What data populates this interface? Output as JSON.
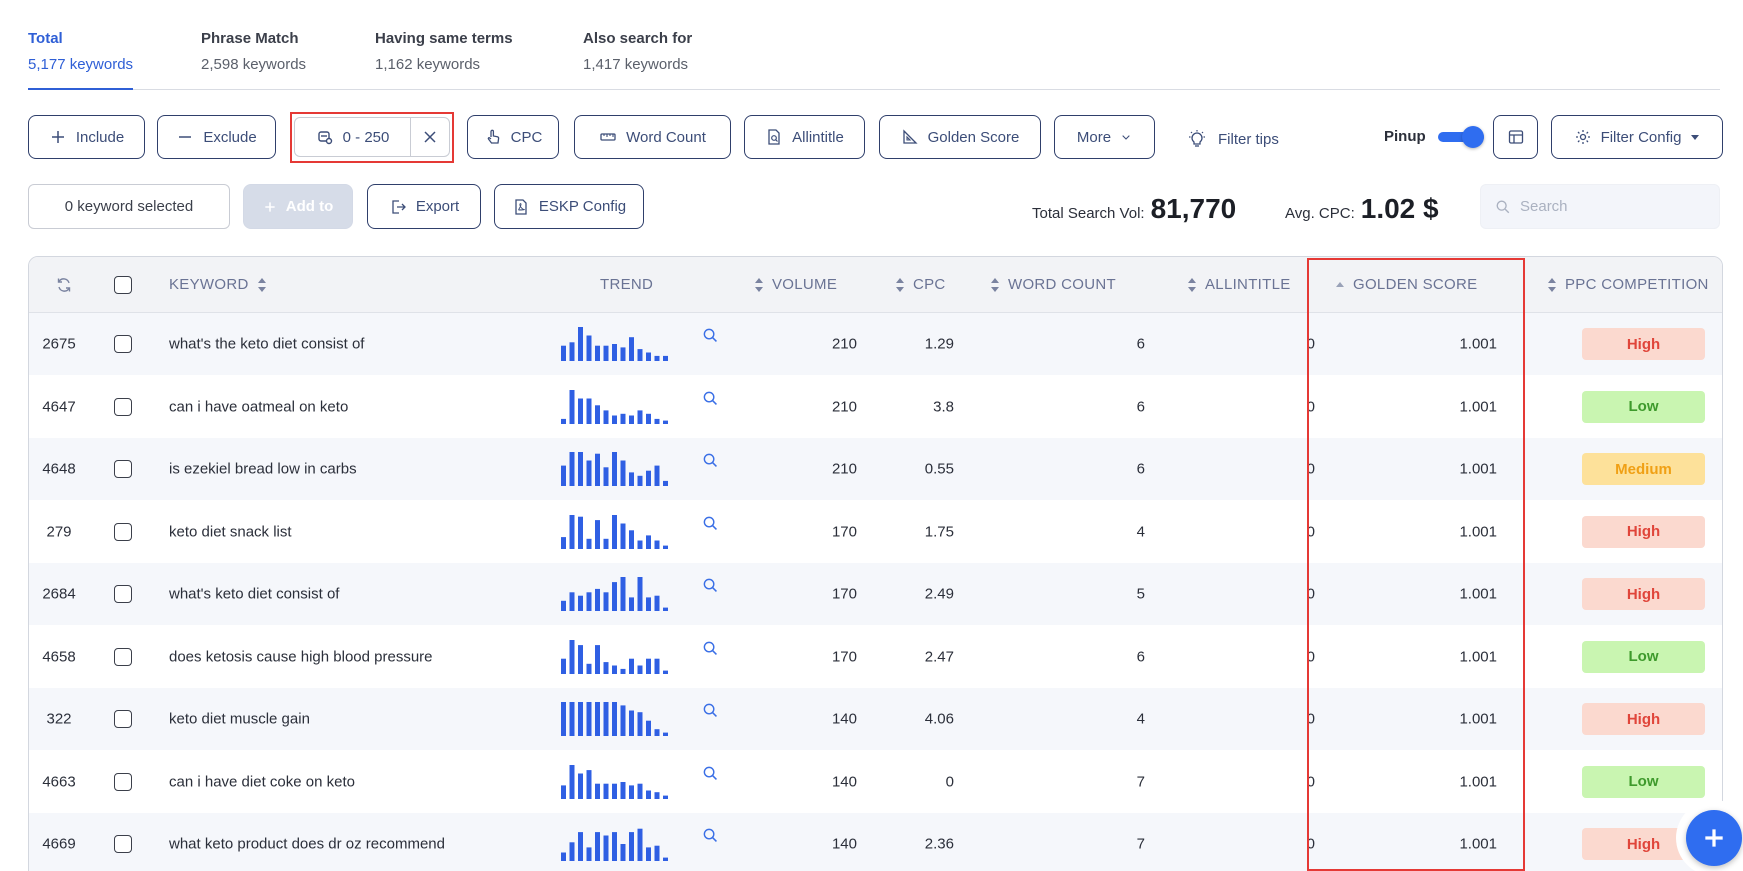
{
  "tabs": [
    {
      "title": "Total",
      "count": "5,177 keywords",
      "active": true
    },
    {
      "title": "Phrase Match",
      "count": "2,598 keywords",
      "active": false
    },
    {
      "title": "Having same terms",
      "count": "1,162 keywords",
      "active": false
    },
    {
      "title": "Also search for",
      "count": "1,417 keywords",
      "active": false
    }
  ],
  "filters": {
    "include": "Include",
    "exclude": "Exclude",
    "range": "0 - 250",
    "cpc": "CPC",
    "word_count": "Word Count",
    "allintitle": "Allintitle",
    "golden_score": "Golden Score",
    "more": "More",
    "filter_tips": "Filter tips",
    "pinup": "Pinup",
    "filter_config": "Filter Config"
  },
  "actions": {
    "selected": "0 keyword selected",
    "add_to": "Add to",
    "export": "Export",
    "eskp_config": "ESKP Config"
  },
  "stats": {
    "total_search_vol_label": "Total Search Vol:",
    "total_search_vol": "81,770",
    "avg_cpc_label": "Avg. CPC:",
    "avg_cpc": "1.02 $"
  },
  "search": {
    "placeholder": "Search"
  },
  "columns": {
    "keyword": "KEYWORD",
    "trend": "TREND",
    "volume": "VOLUME",
    "cpc": "CPC",
    "word_count": "WORD COUNT",
    "allintitle": "ALLINTITLE",
    "golden_score": "GOLDEN SCORE",
    "ppc_competition": "PPC COMPETITION"
  },
  "rows": [
    {
      "id": "2675",
      "keyword": "what's the keto diet consist of",
      "volume": "210",
      "cpc": "1.29",
      "word_count": "6",
      "allintitle": "0",
      "golden_score": "1.001",
      "competition": "High",
      "trend": [
        0.45,
        0.55,
        1.0,
        0.75,
        0.45,
        0.45,
        0.5,
        0.4,
        0.7,
        0.35,
        0.25,
        0.15,
        0.15
      ]
    },
    {
      "id": "4647",
      "keyword": "can i have oatmeal on keto",
      "volume": "210",
      "cpc": "3.8",
      "word_count": "6",
      "allintitle": "0",
      "golden_score": "1.001",
      "competition": "Low",
      "trend": [
        0.15,
        1.0,
        0.75,
        0.75,
        0.55,
        0.4,
        0.25,
        0.3,
        0.25,
        0.4,
        0.3,
        0.15,
        0.1
      ]
    },
    {
      "id": "4648",
      "keyword": "is ezekiel bread low in carbs",
      "volume": "210",
      "cpc": "0.55",
      "word_count": "6",
      "allintitle": "0",
      "golden_score": "1.001",
      "competition": "Medium",
      "trend": [
        0.6,
        1.0,
        1.0,
        0.75,
        0.95,
        0.55,
        1.0,
        0.75,
        0.4,
        0.3,
        0.45,
        0.6,
        0.15
      ]
    },
    {
      "id": "279",
      "keyword": "keto diet snack list",
      "volume": "170",
      "cpc": "1.75",
      "word_count": "4",
      "allintitle": "0",
      "golden_score": "1.001",
      "competition": "High",
      "trend": [
        0.35,
        1.0,
        0.95,
        0.3,
        0.85,
        0.3,
        1.0,
        0.75,
        0.55,
        0.25,
        0.4,
        0.25,
        0.1
      ]
    },
    {
      "id": "2684",
      "keyword": "what's keto diet consist of",
      "volume": "170",
      "cpc": "2.49",
      "word_count": "5",
      "allintitle": "0",
      "golden_score": "1.001",
      "competition": "High",
      "trend": [
        0.3,
        0.55,
        0.45,
        0.55,
        0.65,
        0.55,
        0.85,
        1.0,
        0.4,
        1.0,
        0.4,
        0.45,
        0.1
      ]
    },
    {
      "id": "4658",
      "keyword": "does ketosis cause high blood pressure",
      "volume": "170",
      "cpc": "2.47",
      "word_count": "6",
      "allintitle": "0",
      "golden_score": "1.001",
      "competition": "Low",
      "trend": [
        0.45,
        1.0,
        0.85,
        0.3,
        0.85,
        0.35,
        0.25,
        0.15,
        0.45,
        0.25,
        0.45,
        0.45,
        0.1
      ]
    },
    {
      "id": "322",
      "keyword": "keto diet muscle gain",
      "volume": "140",
      "cpc": "4.06",
      "word_count": "4",
      "allintitle": "0",
      "golden_score": "1.001",
      "competition": "High",
      "trend": [
        1.0,
        1.0,
        1.0,
        1.0,
        1.0,
        1.0,
        1.0,
        0.9,
        0.75,
        0.7,
        0.45,
        0.2,
        0.1
      ]
    },
    {
      "id": "4663",
      "keyword": "can i have diet coke on keto",
      "volume": "140",
      "cpc": "0",
      "word_count": "7",
      "allintitle": "0",
      "golden_score": "1.001",
      "competition": "Low",
      "trend": [
        0.4,
        1.0,
        0.75,
        0.85,
        0.45,
        0.45,
        0.45,
        0.5,
        0.4,
        0.45,
        0.25,
        0.2,
        0.1
      ]
    },
    {
      "id": "4669",
      "keyword": "what keto product does dr oz recommend",
      "volume": "140",
      "cpc": "2.36",
      "word_count": "7",
      "allintitle": "0",
      "golden_score": "1.001",
      "competition": "High",
      "trend": [
        0.25,
        0.55,
        0.85,
        0.4,
        0.85,
        0.75,
        0.85,
        0.5,
        0.85,
        0.95,
        0.4,
        0.45,
        0.1
      ]
    }
  ],
  "colors": {
    "accent": "#2f6df0",
    "highlight": "#e53935",
    "trend_bar": "#2f5fe3"
  }
}
